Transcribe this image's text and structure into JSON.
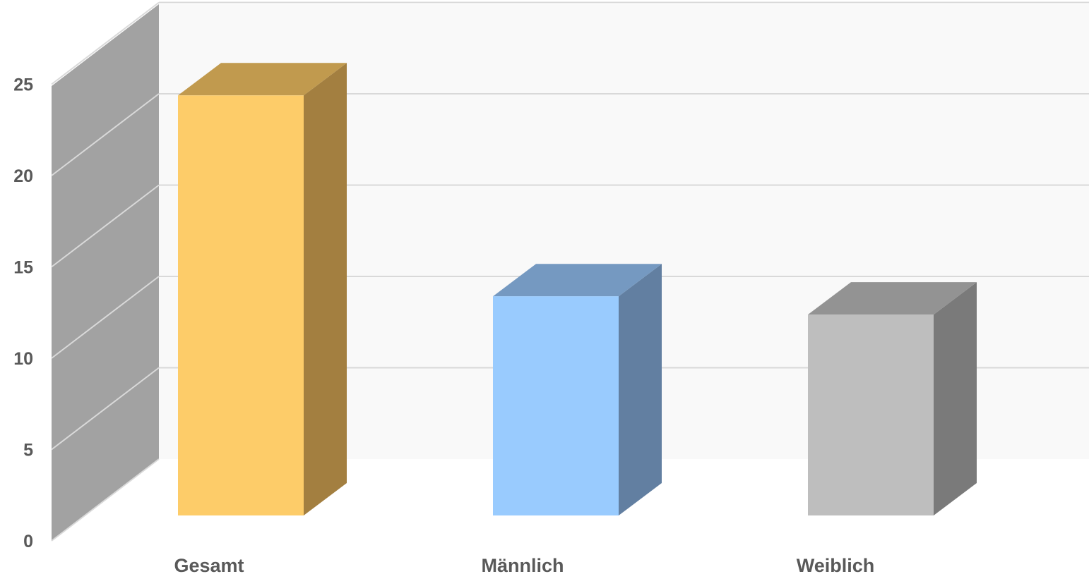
{
  "chart_data": {
    "type": "bar",
    "categories": [
      "Gesamt",
      "Männlich",
      "Weiblich"
    ],
    "values": [
      23,
      12,
      11
    ],
    "ylim": [
      0,
      25
    ],
    "yticks": [
      0,
      5,
      10,
      15,
      20,
      25
    ],
    "grid": true,
    "three_d": true,
    "colors": {
      "front": [
        "#FDCC69",
        "#99CBFE",
        "#BEBEBE"
      ],
      "side": [
        "#A37F40",
        "#627FA1",
        "#7A7A7A"
      ],
      "top": [
        "#C19A4E",
        "#7599C1",
        "#939393"
      ],
      "back_wall": "#F9F9F9",
      "side_wall": "#A2A2A2",
      "grid": "#D9D9D9",
      "text": "#595959"
    }
  }
}
